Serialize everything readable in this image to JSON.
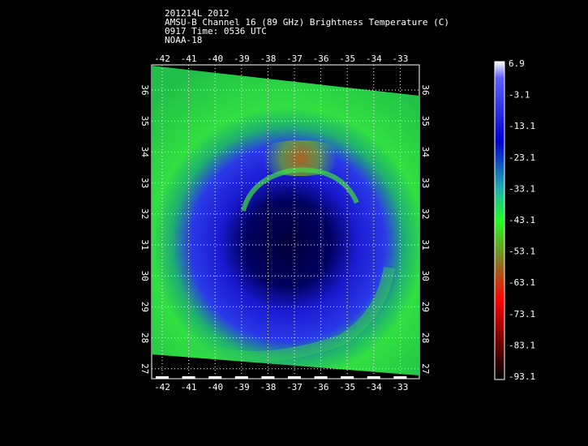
{
  "header": {
    "lines": [
      "201214L 2012",
      "AMSU-B Channel 16 (89 GHz) Brightness Temperature (C)",
      "0917 Time: 0536 UTC",
      "NOAA-18"
    ]
  },
  "map": {
    "lon_labels": [
      "-42",
      "-41",
      "-40",
      "-39",
      "-38",
      "-37",
      "-36",
      "-35",
      "-34",
      "-33"
    ],
    "lat_labels": [
      "36",
      "35",
      "34",
      "33",
      "32",
      "31",
      "30",
      "29",
      "28",
      "27"
    ]
  },
  "colorbar": {
    "labels": [
      "6.9",
      "-3.1",
      "-13.1",
      "-23.1",
      "-33.1",
      "-43.1",
      "-53.1",
      "-63.1",
      "-73.1",
      "-83.1",
      "-93.1"
    ]
  }
}
